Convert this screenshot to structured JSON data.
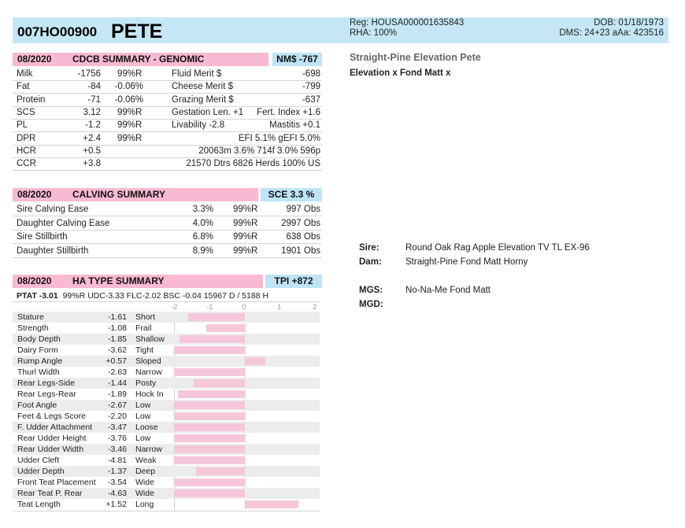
{
  "header": {
    "code": "007HO00900",
    "name": "PETE",
    "reg": "Reg: HOUSA000001635843",
    "rha": "RHA: 100%",
    "dob": "DOB: 01/18/1973",
    "dms": "DMS: 24+23  aAa: 423516"
  },
  "animal": {
    "full_name": "Straight-Pine Elevation Pete",
    "lineage": "Elevation x Fond Matt x"
  },
  "genomic": {
    "date": "08/2020",
    "title": "CDCB SUMMARY - GENOMIC",
    "index": "NM$ -767",
    "rows": [
      {
        "trait": "Milk",
        "value": "-1756",
        "pct": "",
        "rel": "99%R",
        "mlabel": "Fluid Merit $",
        "mvalue": "-698"
      },
      {
        "trait": "Fat",
        "value": "-84",
        "pct": "-0.06%",
        "rel": "",
        "mlabel": "Cheese Merit $",
        "mvalue": "-799"
      },
      {
        "trait": "Protein",
        "value": "-71",
        "pct": "-0.06%",
        "rel": "",
        "mlabel": "Grazing Merit $",
        "mvalue": "-637"
      },
      {
        "trait": "SCS",
        "value": "3.12",
        "pct": "",
        "rel": "99%R",
        "mlabel": "Gestation Len. +1",
        "mvalue": "Fert. Index +1.6"
      },
      {
        "trait": "PL",
        "value": "-1.2",
        "pct": "",
        "rel": "99%R",
        "mlabel": "Livability  -2.8",
        "mvalue": "Mastitis  +0.1"
      },
      {
        "trait": "DPR",
        "value": "+2.4",
        "pct": "",
        "rel": "99%R",
        "mlabel": "EFI  5.1%  gEFI  5.0%",
        "mvalue": ""
      },
      {
        "trait": "HCR",
        "value": "+0.5",
        "pct": "",
        "rel": "",
        "mlabel": "20063m  3.6%  714f  3.0%  596p",
        "mvalue": ""
      },
      {
        "trait": "CCR",
        "value": "+3.8",
        "pct": "",
        "rel": "",
        "mlabel": "21570 Dtrs  6826 Herds  100% US",
        "mvalue": ""
      }
    ]
  },
  "calving": {
    "date": "08/2020",
    "title": "CALVING SUMMARY",
    "index": "SCE 3.3 %",
    "rows": [
      {
        "trait": "Sire Calving Ease",
        "value": "3.3%",
        "rel": "99%R",
        "obs": "997 Obs"
      },
      {
        "trait": "Daughter Calving Ease",
        "value": "4.0%",
        "rel": "99%R",
        "obs": "2997 Obs"
      },
      {
        "trait": "Sire Stillbirth",
        "value": "6.8%",
        "rel": "99%R",
        "obs": "638 Obs"
      },
      {
        "trait": "Daughter Stillbirth",
        "value": "8.9%",
        "rel": "99%R",
        "obs": "1901 Obs"
      }
    ]
  },
  "type": {
    "date": "08/2020",
    "title": "HA TYPE SUMMARY",
    "index": "TPI +872",
    "ptat": "PTAT -3.01",
    "ptat_rest": "99%R  UDC-3.33  FLC-2.02  BSC -0.04  15967 D / 5188 H",
    "scale": [
      "-2",
      "-1",
      "0",
      "1",
      "2"
    ],
    "rows": [
      {
        "trait": "Stature",
        "value": "-1.61",
        "desc": "Short"
      },
      {
        "trait": "Strength",
        "value": "-1.08",
        "desc": "Frail"
      },
      {
        "trait": "Body Depth",
        "value": "-1.85",
        "desc": "Shallow"
      },
      {
        "trait": "Dairy Form",
        "value": "-3.62",
        "desc": "Tight"
      },
      {
        "trait": "Rump Angle",
        "value": "+0.57",
        "desc": "Sloped"
      },
      {
        "trait": "Thurl Width",
        "value": "-2.63",
        "desc": "Narrow"
      },
      {
        "trait": "Rear Legs-Side",
        "value": "-1.44",
        "desc": "Posty"
      },
      {
        "trait": "Rear Legs-Rear",
        "value": "-1.89",
        "desc": "Hock In"
      },
      {
        "trait": "Foot Angle",
        "value": "-2.67",
        "desc": "Low"
      },
      {
        "trait": "Feet & Legs Score",
        "value": "-2.20",
        "desc": "Low"
      },
      {
        "trait": "F. Udder Attachment",
        "value": "-3.47",
        "desc": "Loose"
      },
      {
        "trait": "Rear Udder Height",
        "value": "-3.76",
        "desc": "Low"
      },
      {
        "trait": "Rear Udder Width",
        "value": "-3.46",
        "desc": "Narrow"
      },
      {
        "trait": "Udder Cleft",
        "value": "-4.81",
        "desc": "Weak"
      },
      {
        "trait": "Udder Depth",
        "value": "-1.37",
        "desc": "Deep"
      },
      {
        "trait": "Front Teat Placement",
        "value": "-3.54",
        "desc": "Wide"
      },
      {
        "trait": "Rear Teat P. Rear",
        "value": "-4.63",
        "desc": "Wide"
      },
      {
        "trait": "Teat Length",
        "value": "+1.52",
        "desc": "Long"
      }
    ]
  },
  "pedigree": {
    "sire_label": "Sire:",
    "sire": "Round Oak Rag Apple Elevation TV TL EX-96",
    "dam_label": "Dam:",
    "dam": "Straight-Pine Fond Matt Horny",
    "mgs_label": "MGS:",
    "mgs": "No-Na-Me Fond Matt",
    "mgd_label": "MGD:",
    "mgd": ""
  },
  "colors": {
    "pink": "#f8b9d2",
    "blue": "#c5e7f5",
    "bar": "#f6c6da"
  }
}
